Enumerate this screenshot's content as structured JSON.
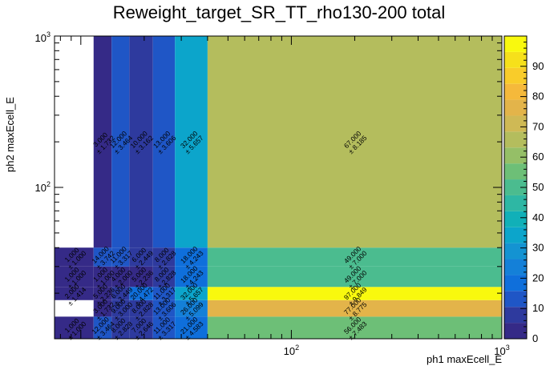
{
  "chart_data": {
    "type": "heatmap",
    "title": "Reweight_target_SR_TT_rho130-200 total",
    "xlabel": "ph1 maxEcell_E",
    "ylabel": "ph2 maxEcell_E",
    "xscale": "log",
    "yscale": "log",
    "xlim": [
      7.5,
      1000
    ],
    "ylim": [
      10,
      1000
    ],
    "x_tick_labels": [
      "10^{2}",
      "10^{3}"
    ],
    "y_tick_labels": [
      "10^{2}",
      "10^{3}"
    ],
    "colorbar": {
      "min": 0,
      "max": 100,
      "tick_labels": [
        "0",
        "10",
        "20",
        "30",
        "40",
        "50",
        "60",
        "70",
        "80",
        "90"
      ]
    },
    "x_edges": [
      7.5,
      11.5,
      14,
      17,
      22,
      28,
      40,
      1000
    ],
    "y_edges": [
      10,
      14,
      18,
      22,
      30,
      40,
      1000
    ],
    "cells": [
      {
        "ix": 0,
        "iy": 0,
        "value": 1,
        "error": 1.0
      },
      {
        "ix": 1,
        "iy": 0,
        "value": 12,
        "error": 3.464
      },
      {
        "ix": 2,
        "iy": 0,
        "value": 8,
        "error": 2.828
      },
      {
        "ix": 3,
        "iy": 0,
        "value": 7,
        "error": 2.646
      },
      {
        "ix": 4,
        "iy": 0,
        "value": 11,
        "error": 3.317
      },
      {
        "ix": 5,
        "iy": 0,
        "value": 21,
        "error": 4.583
      },
      {
        "ix": 6,
        "iy": 0,
        "value": 56,
        "error": 7.483
      },
      {
        "ix": 1,
        "iy": 1,
        "value": 3,
        "error": 1.732
      },
      {
        "ix": 2,
        "iy": 1,
        "value": 9,
        "error": 3.0
      },
      {
        "ix": 3,
        "iy": 1,
        "value": 8,
        "error": 2.828
      },
      {
        "ix": 4,
        "iy": 1,
        "value": 13,
        "error": 3.606
      },
      {
        "ix": 5,
        "iy": 1,
        "value": 26,
        "error": 5.099
      },
      {
        "ix": 6,
        "iy": 1,
        "value": 77,
        "error": 8.775
      },
      {
        "ix": 0,
        "iy": 2,
        "value": 2,
        "error": 1.414
      },
      {
        "ix": 1,
        "iy": 2,
        "value": 5,
        "error": 2.236
      },
      {
        "ix": 2,
        "iy": 2,
        "value": 6,
        "error": 2.449
      },
      {
        "ix": 3,
        "iy": 2,
        "value": 20,
        "error": 4.472
      },
      {
        "ix": 4,
        "iy": 2,
        "value": 11,
        "error": 3.317
      },
      {
        "ix": 5,
        "iy": 2,
        "value": 32,
        "error": 5.657
      },
      {
        "ix": 6,
        "iy": 2,
        "value": 97,
        "error": 9.849
      },
      {
        "ix": 0,
        "iy": 3,
        "value": 1,
        "error": 1.0
      },
      {
        "ix": 1,
        "iy": 3,
        "value": 1,
        "error": 1.0
      },
      {
        "ix": 2,
        "iy": 3,
        "value": 4,
        "error": 2.0
      },
      {
        "ix": 3,
        "iy": 3,
        "value": 5,
        "error": 2.236
      },
      {
        "ix": 4,
        "iy": 3,
        "value": 8,
        "error": 2.828
      },
      {
        "ix": 5,
        "iy": 3,
        "value": 18,
        "error": 4.243
      },
      {
        "ix": 6,
        "iy": 3,
        "value": 49,
        "error": 7.0
      },
      {
        "ix": 0,
        "iy": 4,
        "value": 1,
        "error": 1.0
      },
      {
        "ix": 1,
        "iy": 4,
        "value": 14,
        "error": 3.742
      },
      {
        "ix": 2,
        "iy": 4,
        "value": 11,
        "error": 3.317
      },
      {
        "ix": 3,
        "iy": 4,
        "value": 6,
        "error": 2.449
      },
      {
        "ix": 4,
        "iy": 4,
        "value": 8,
        "error": 2.828
      },
      {
        "ix": 5,
        "iy": 4,
        "value": 18,
        "error": 4.243
      },
      {
        "ix": 6,
        "iy": 4,
        "value": 49,
        "error": 7.0
      },
      {
        "ix": 1,
        "iy": 5,
        "value": 3,
        "error": 1.732
      },
      {
        "ix": 2,
        "iy": 5,
        "value": 12,
        "error": 3.464
      },
      {
        "ix": 3,
        "iy": 5,
        "value": 10,
        "error": 3.162
      },
      {
        "ix": 4,
        "iy": 5,
        "value": 13,
        "error": 3.606
      },
      {
        "ix": 5,
        "iy": 5,
        "value": 32,
        "error": 5.657
      },
      {
        "ix": 6,
        "iy": 5,
        "value": 67,
        "error": 8.185
      }
    ]
  }
}
